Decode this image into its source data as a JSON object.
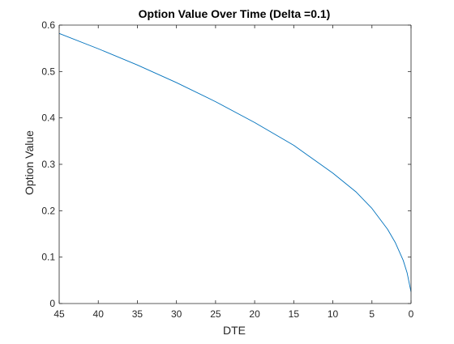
{
  "chart_data": {
    "type": "line",
    "title": "Option Value Over Time (Delta =0.1)",
    "xlabel": "DTE",
    "ylabel": "Option Value",
    "xlim": [
      45,
      0
    ],
    "ylim": [
      0,
      0.6
    ],
    "x_reversed": true,
    "grid": false,
    "box": true,
    "xticks": [
      45,
      40,
      35,
      30,
      25,
      20,
      15,
      10,
      5,
      0
    ],
    "yticks": [
      0,
      0.1,
      0.2,
      0.3,
      0.4,
      0.5,
      0.6
    ],
    "xtick_labels": [
      "45",
      "40",
      "35",
      "30",
      "25",
      "20",
      "15",
      "10",
      "5",
      "0"
    ],
    "ytick_labels": [
      "0",
      "0.1",
      "0.2",
      "0.3",
      "0.4",
      "0.5",
      "0.6"
    ],
    "series": [
      {
        "color": "#0072bd",
        "x": [
          45,
          40,
          35,
          30,
          25,
          20,
          15,
          10,
          7,
          5,
          3,
          2,
          1,
          0.5,
          0
        ],
        "y": [
          0.582,
          0.549,
          0.514,
          0.476,
          0.435,
          0.39,
          0.341,
          0.281,
          0.24,
          0.205,
          0.16,
          0.131,
          0.093,
          0.066,
          0.025
        ]
      }
    ]
  }
}
